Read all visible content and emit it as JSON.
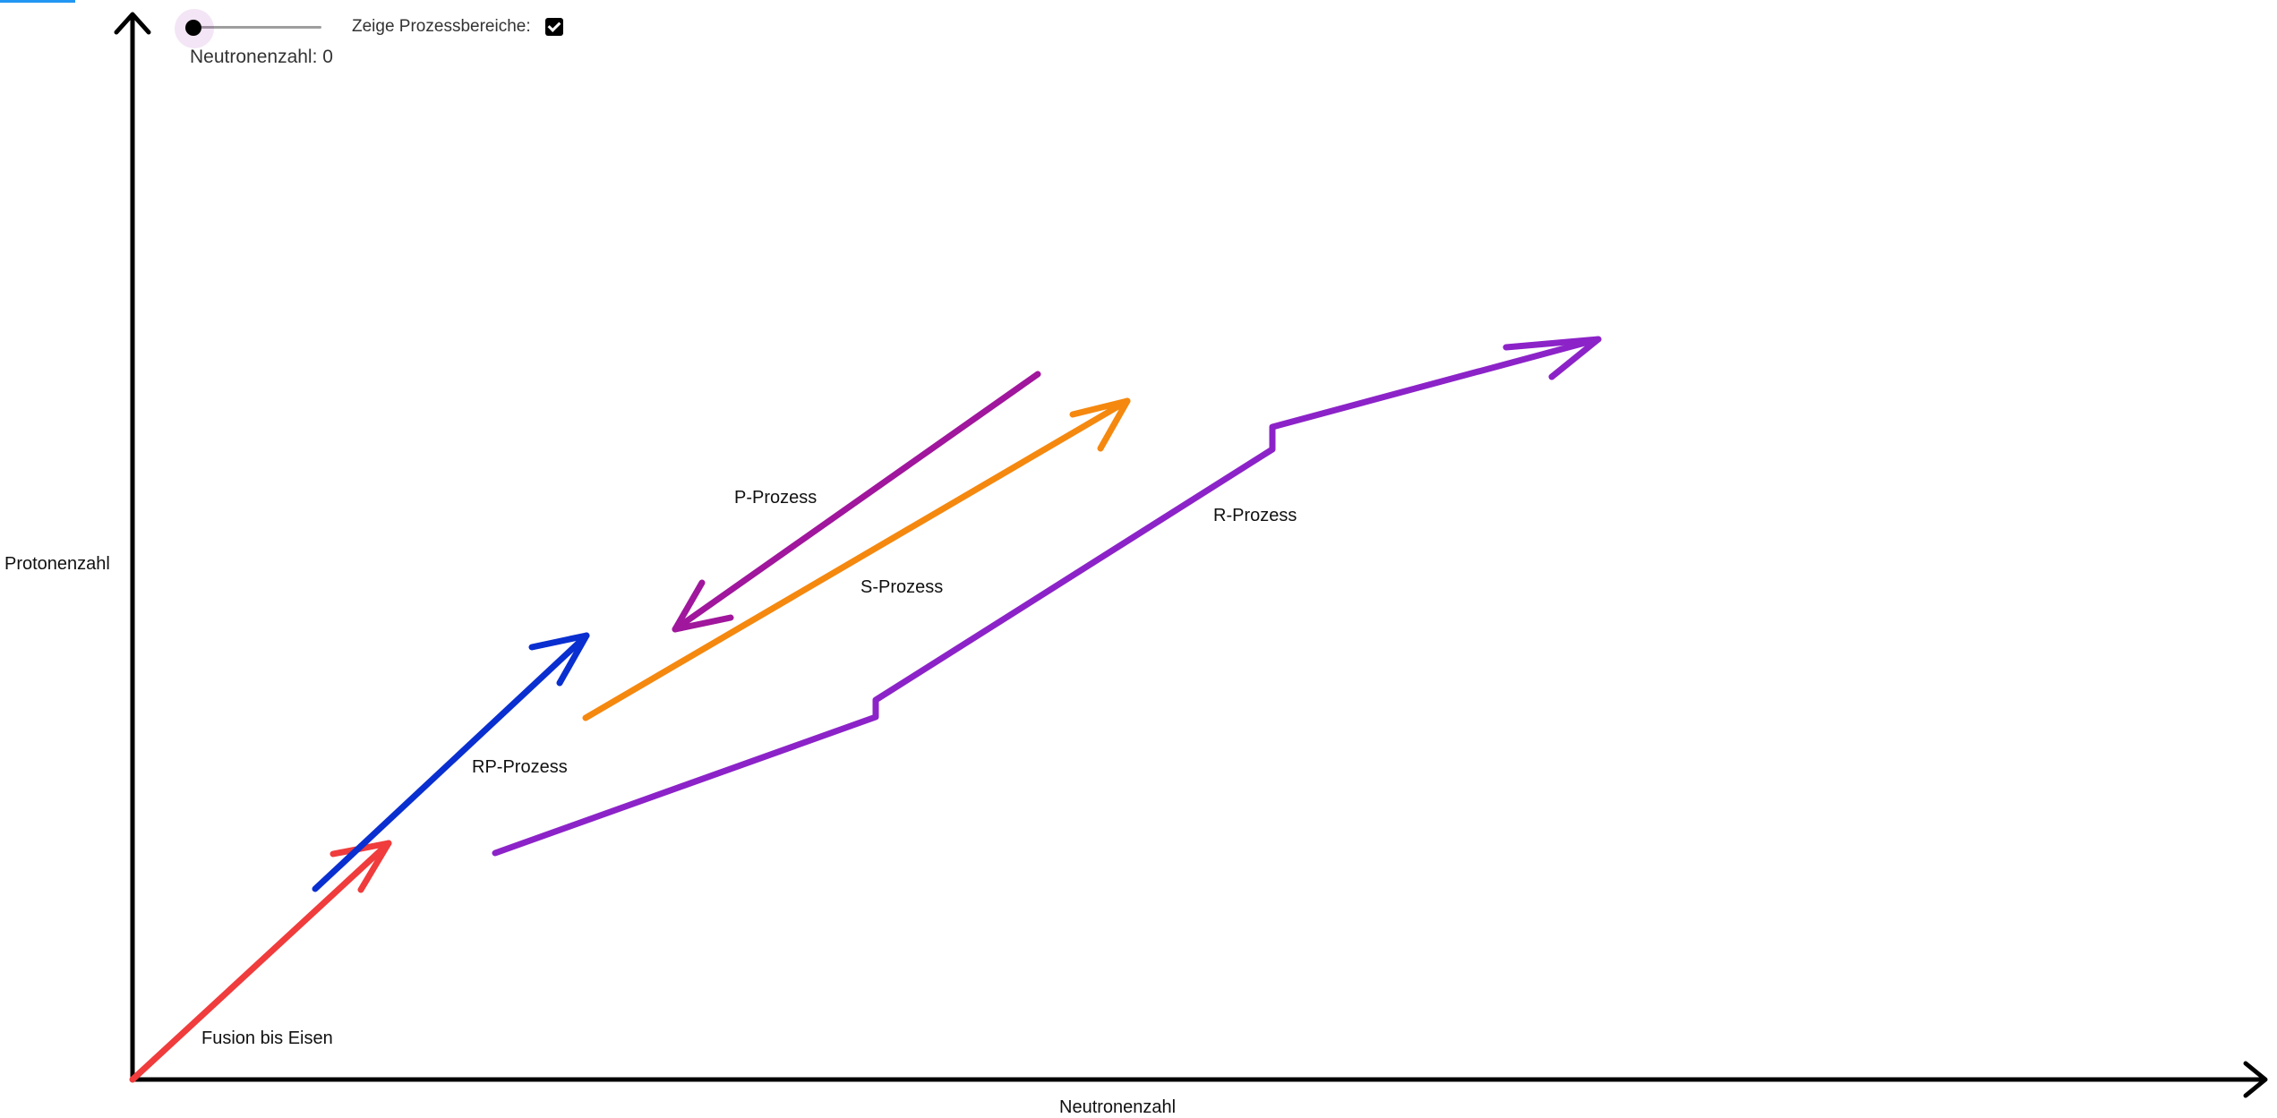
{
  "controls": {
    "slider": {
      "value_label": "Neutronenzahl: 0",
      "value": 0
    },
    "checkbox": {
      "label": "Zeige Prozessbereiche:",
      "checked": true
    }
  },
  "axes": {
    "x_label": "Neutronenzahl",
    "y_label": "Protonenzahl",
    "color": "#000000"
  },
  "processes": [
    {
      "id": "fusion",
      "label": "Fusion bis Eisen",
      "color": "#f03c3c"
    },
    {
      "id": "rp",
      "label": "RP-Prozess",
      "color": "#0a2fd0"
    },
    {
      "id": "s",
      "label": "S-Prozess",
      "color": "#f5880f"
    },
    {
      "id": "p",
      "label": "P-Prozess",
      "color": "#a0169c"
    },
    {
      "id": "r",
      "label": "R-Prozess",
      "color": "#8c23c8"
    }
  ]
}
